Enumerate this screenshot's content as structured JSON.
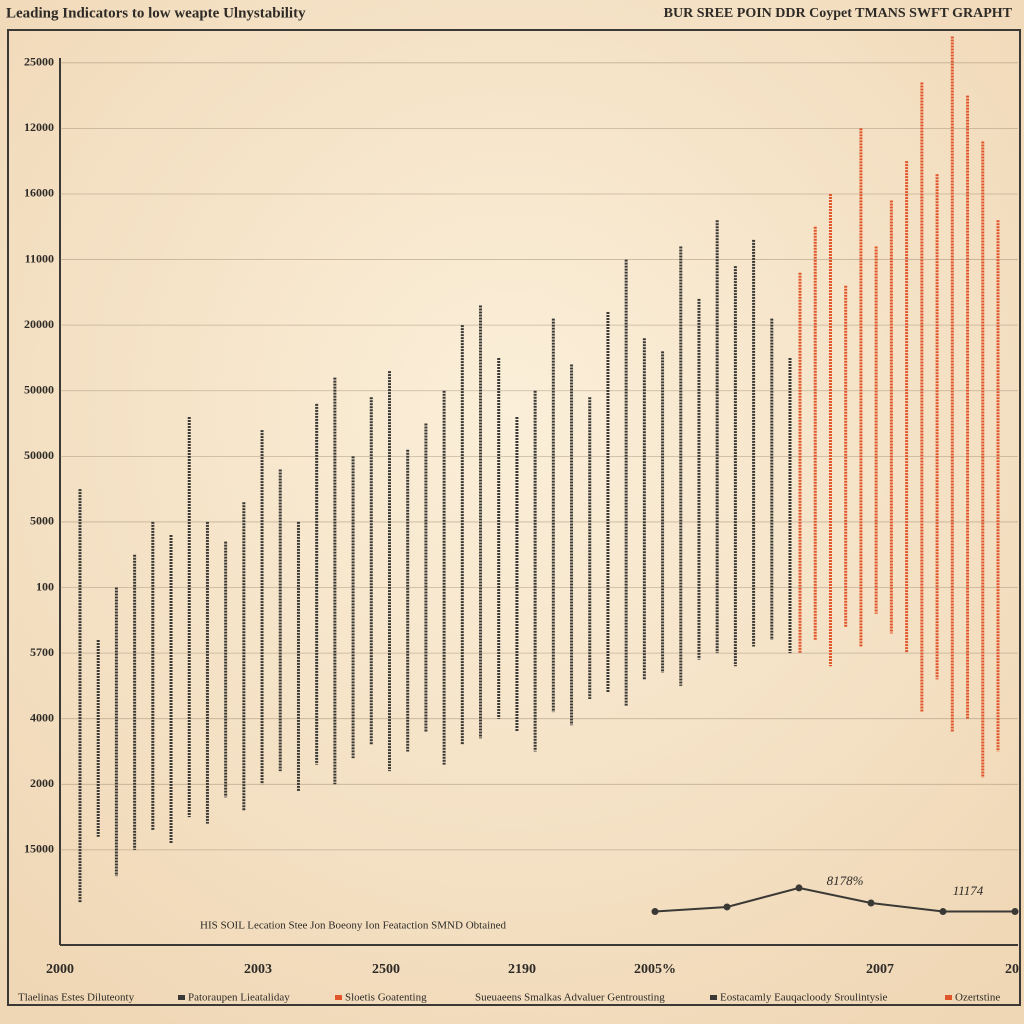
{
  "chart_data": {
    "type": "range",
    "title": "Leading Indicators to low weapte Ulnystability",
    "subtitle": "BUR SREE POIN DDR Coypet TMANS SWFT GRAPHT",
    "footnote": "HIS SOIL Lecation Stee Jon Boeony Ion Feataction SMND Obtained",
    "annotations": [
      {
        "text": "8178%",
        "color": "#d9482a"
      },
      {
        "text": "11174",
        "color": "#d9482a"
      }
    ],
    "ylim": [
      -1.45,
      12.5
    ],
    "yticks": [
      {
        "value": 0,
        "label": "15000"
      },
      {
        "value": 1,
        "label": "2000"
      },
      {
        "value": 2,
        "label": "4000"
      },
      {
        "value": 3,
        "label": "5700"
      },
      {
        "value": 4,
        "label": "100"
      },
      {
        "value": 5,
        "label": "5000"
      },
      {
        "value": 6,
        "label": "50000"
      },
      {
        "value": 7,
        "label": "50000"
      },
      {
        "value": 8,
        "label": "20000"
      },
      {
        "value": 9,
        "label": "11000"
      },
      {
        "value": 10,
        "label": "16000"
      },
      {
        "value": 11,
        "label": "12000"
      },
      {
        "value": 12,
        "label": "25000"
      }
    ],
    "x_labels": [
      "2000",
      "2003",
      "2500",
      "2190",
      "2005%",
      "2007",
      "20"
    ],
    "grid": true,
    "series": [
      {
        "color": "#3b3935",
        "high": [
          5.5,
          3.2,
          4.0,
          4.5,
          5.0,
          4.8,
          6.6,
          5.0,
          4.7,
          5.3,
          6.4,
          5.8,
          5.0,
          6.8,
          7.2,
          6.0,
          6.9,
          7.3,
          6.1,
          6.5,
          7.0,
          8.0,
          8.3,
          7.5,
          6.6,
          7.0,
          8.1,
          7.4,
          6.9,
          8.2,
          9.0,
          7.8,
          7.6,
          9.2,
          8.4,
          9.6,
          8.9,
          9.3,
          8.1,
          7.5
        ],
        "low": [
          -0.8,
          0.2,
          -0.4,
          0,
          0.3,
          0.1,
          0.5,
          0.4,
          0.8,
          0.6,
          1.0,
          1.2,
          0.9,
          1.3,
          1.0,
          1.4,
          1.6,
          1.2,
          1.5,
          1.8,
          1.3,
          1.6,
          1.7,
          2.0,
          1.8,
          1.5,
          2.1,
          1.9,
          2.3,
          2.4,
          2.2,
          2.6,
          2.7,
          2.5,
          2.9,
          3.0,
          2.8,
          3.1,
          3.2,
          3.0
        ]
      },
      {
        "color": "#e0552a",
        "high": [
          8.8,
          9.5,
          10.0,
          8.6,
          11.0,
          9.2,
          9.9,
          10.5,
          11.7,
          10.3,
          12.4,
          11.5,
          10.8,
          9.6
        ],
        "low": [
          3.0,
          3.2,
          2.8,
          3.4,
          3.1,
          3.6,
          3.3,
          3.0,
          2.1,
          2.6,
          1.8,
          2.0,
          1.1,
          1.5
        ]
      }
    ],
    "trend": {
      "color": "#3b3935",
      "values": [
        -0.94,
        -0.87,
        -0.58,
        -0.81,
        -0.94,
        -0.94
      ]
    },
    "legend": [
      {
        "name": "Tlaelinas Estes Diluteonty",
        "color": null
      },
      {
        "name": "Patoraupen Lieataliday",
        "color": "#3b3935"
      },
      {
        "name": "Sloetis Goatenting",
        "color": "#e0552a"
      },
      {
        "name": "Sueuaeens Smalkas Advaluer Gentrousting",
        "color": null
      },
      {
        "name": "Eostacamly Eauqacloody Sroulintysie",
        "color": "#3b3935"
      },
      {
        "name": "Ozertstine",
        "color": "#e0552a"
      }
    ]
  }
}
